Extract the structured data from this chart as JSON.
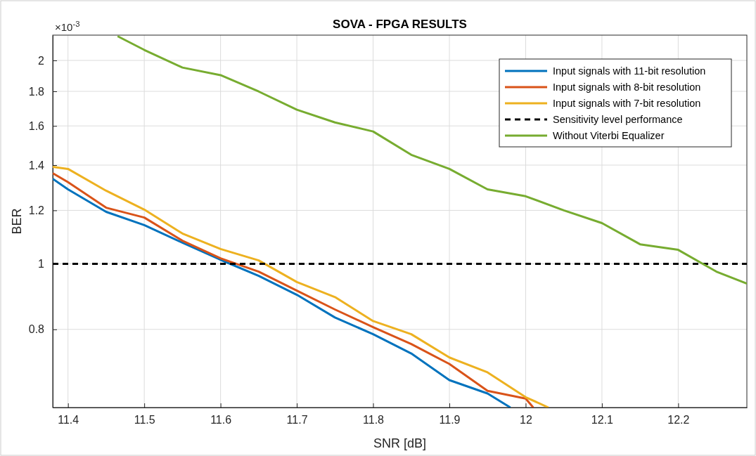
{
  "chart_data": {
    "type": "line",
    "title": "SOVA - FPGA RESULTS",
    "xlabel": "SNR [dB]",
    "ylabel": "BER",
    "annotations": [
      "×10$^{-3}$"
    ],
    "log": "y",
    "grid": true,
    "legend": "top right",
    "marker": "none",
    "xlim": [
      11.38,
      12.29
    ],
    "xticks": [
      11.4,
      11.5,
      11.6,
      11.7,
      11.8,
      11.9,
      12,
      12.1,
      12.2
    ],
    "ylim": [
      0.613,
      2.18
    ],
    "yticks": [
      0.8,
      1,
      1.2,
      1.4,
      1.6,
      1.8,
      2
    ],
    "series": [
      {
        "name": "Input signals with 11-bit resolution",
        "color": "#0072bd",
        "x": [
          11.38,
          11.4,
          11.45,
          11.5,
          11.55,
          11.6,
          11.65,
          11.7,
          11.75,
          11.8,
          11.85,
          11.9,
          11.95,
          11.98
        ],
        "values": [
          1.336,
          1.289,
          1.194,
          1.141,
          1.075,
          1.014,
          0.96,
          0.9,
          0.833,
          0.787,
          0.737,
          0.673,
          0.643,
          0.613
        ]
      },
      {
        "name": "Input signals with 8-bit resolution",
        "color": "#d95319",
        "x": [
          11.38,
          11.4,
          11.45,
          11.5,
          11.55,
          11.6,
          11.65,
          11.7,
          11.75,
          11.8,
          11.85,
          11.9,
          11.95,
          12,
          12.01
        ],
        "values": [
          1.362,
          1.321,
          1.211,
          1.171,
          1.082,
          1.019,
          0.974,
          0.913,
          0.856,
          0.806,
          0.761,
          0.711,
          0.649,
          0.632,
          0.613
        ]
      },
      {
        "name": "Input signals with 7-bit resolution",
        "color": "#edb120",
        "x": [
          11.38,
          11.4,
          11.45,
          11.5,
          11.55,
          11.6,
          11.65,
          11.7,
          11.75,
          11.8,
          11.85,
          11.9,
          11.95,
          12,
          12.03
        ],
        "values": [
          1.392,
          1.382,
          1.283,
          1.203,
          1.109,
          1.052,
          1.012,
          0.94,
          0.893,
          0.823,
          0.787,
          0.727,
          0.691,
          0.635,
          0.613
        ]
      },
      {
        "name": "Sensitivity level performance",
        "color": "#000000",
        "line_style": "dashed",
        "x": [
          11.38,
          12.29
        ],
        "values": [
          1,
          1
        ]
      },
      {
        "name": "Without Viterbi Equalizer",
        "color": "#77ac30",
        "x": [
          11.465,
          11.5,
          11.55,
          11.6,
          11.65,
          11.7,
          11.75,
          11.8,
          11.85,
          11.9,
          11.95,
          12,
          12.05,
          12.1,
          12.15,
          12.2,
          12.25,
          12.29
        ],
        "values": [
          2.172,
          2.073,
          1.952,
          1.902,
          1.799,
          1.691,
          1.619,
          1.57,
          1.45,
          1.382,
          1.289,
          1.259,
          1.2,
          1.149,
          1.069,
          1.049,
          0.974,
          0.935
        ]
      }
    ]
  }
}
